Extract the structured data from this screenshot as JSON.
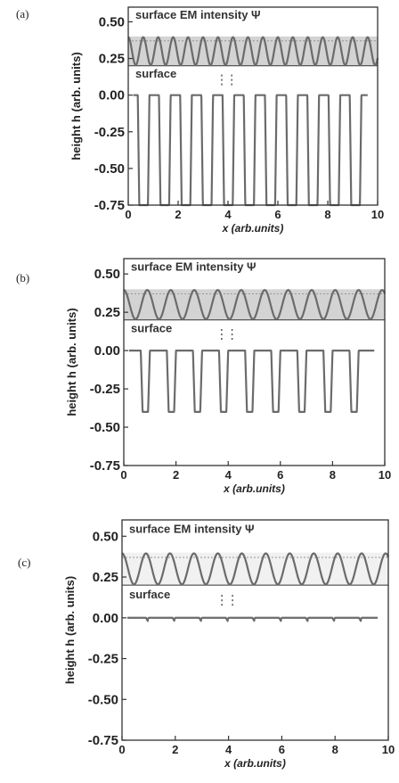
{
  "chart_data": [
    {
      "type": "line",
      "panel_label": "(a)",
      "xlabel": "x (arb.units)",
      "ylabel": "height h (arb. units)",
      "xlim": [
        0,
        10
      ],
      "ylim": [
        -0.75,
        0.6
      ],
      "x_ticks": [
        "0",
        "2",
        "4",
        "6",
        "8",
        "10"
      ],
      "y_ticks": [
        "0.50",
        "0.25",
        "0.00",
        "-0.25",
        "-0.50",
        "-0.75"
      ],
      "annotations": {
        "intensity": "surface EM intensity Ψ",
        "surface": "surface"
      },
      "intensity_band": [
        0.2,
        0.4
      ],
      "intensity_period": 0.6,
      "surface_profile": {
        "period": 0.85,
        "top": 0.0,
        "bottom": -0.75,
        "flat_width": 0.45
      },
      "grid": false
    },
    {
      "type": "line",
      "panel_label": "(b)",
      "xlabel": "x (arb.units)",
      "ylabel": "height h (arb. units)",
      "xlim": [
        0,
        10
      ],
      "ylim": [
        -0.75,
        0.6
      ],
      "x_ticks": [
        "0",
        "2",
        "4",
        "6",
        "8",
        "10"
      ],
      "y_ticks": [
        "0.50",
        "0.25",
        "0.00",
        "-0.25",
        "-0.50",
        "-0.75"
      ],
      "annotations": {
        "intensity": "surface EM intensity Ψ",
        "surface": "surface"
      },
      "intensity_band": [
        0.2,
        0.4
      ],
      "intensity_period": 0.9,
      "surface_profile": {
        "period": 1.0,
        "top": 0.0,
        "bottom": -0.4,
        "flat_width": 0.65
      },
      "grid": false
    },
    {
      "type": "line",
      "panel_label": "(c)",
      "xlabel": "x (arb.units)",
      "ylabel": "height h (arb. units)",
      "xlim": [
        0,
        10
      ],
      "ylim": [
        -0.75,
        0.6
      ],
      "x_ticks": [
        "0",
        "2",
        "4",
        "6",
        "8",
        "10"
      ],
      "y_ticks": [
        "0.50",
        "0.25",
        "0.00",
        "-0.25",
        "-0.50",
        "-0.75"
      ],
      "annotations": {
        "intensity": "surface EM intensity Ψ",
        "surface": "surface"
      },
      "intensity_band": [
        0.2,
        0.4
      ],
      "intensity_period": 0.9,
      "surface_profile": {
        "period": 1.0,
        "top": 0.0,
        "bottom": -0.02,
        "flat_width": 0.9
      },
      "grid": false
    }
  ],
  "colors": {
    "axis": "#333333",
    "line": "#6b6b6b",
    "band": "#c8c8c8",
    "text": "#222222"
  }
}
